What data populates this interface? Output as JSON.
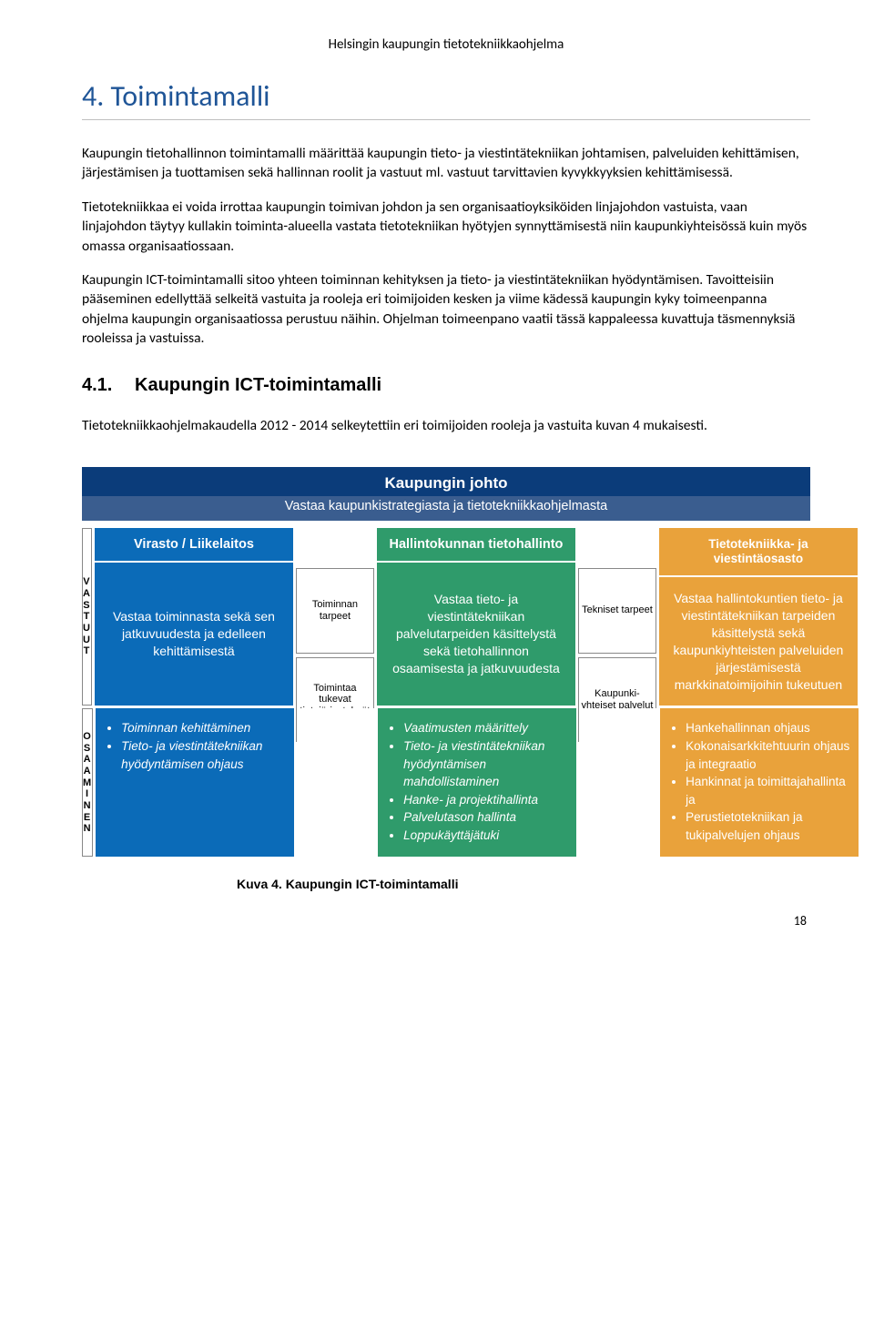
{
  "running_header": "Helsingin kaupungin tietotekniikkaohjelma",
  "heading": "4. Toimintamalli",
  "paragraphs": [
    "Kaupungin tietohallinnon toimintamalli määrittää kaupungin tieto- ja viestintätekniikan johtamisen, palveluiden kehittämisen, järjestämisen ja tuottamisen sekä hallinnan roolit ja vastuut ml. vastuut tarvittavien kyvykkyyksien kehittämisessä.",
    "Tietotekniikkaa ei voida irrottaa kaupungin toimivan johdon ja sen organisaatioyksiköiden linjajohdon vastuista, vaan linjajohdon täytyy kullakin toiminta-alueella vastata tietotekniikan hyötyjen synnyttämisestä niin kaupunkiyhteisössä kuin myös omassa organisaatiossaan.",
    "Kaupungin ICT-toimintamalli sitoo yhteen toiminnan kehityksen ja tieto- ja viestintätekniikan hyödyntämisen. Tavoitteisiin pääseminen edellyttää selkeitä vastuita ja rooleja eri toimijoiden kesken ja viime kädessä kaupungin kyky toimeenpanna ohjelma kaupungin organisaatiossa perustuu näihin. Ohjelman toimeenpano vaatii tässä kappaleessa kuvattuja täsmennyksiä rooleissa ja vastuissa."
  ],
  "subheading_num": "4.1.",
  "subheading_text": "Kaupungin ICT-toimintamalli",
  "sub_intro": "Tietotekniikkaohjelmakaudella 2012 - 2014 selkeytettiin eri toimijoiden rooleja ja vastuita kuvan 4 mukaisesti.",
  "diagram": {
    "top_band_color": "#0b3c7a",
    "top_title": "Kaupungin johto",
    "top_sub_bg": "#3a5d8f",
    "top_sub": "Vastaa kaupunkistrategiasta ja tietotekniikkaohjelmasta",
    "side_label_vastuut": "VASTUUT",
    "side_label_osaaminen": "OSAAMINEN",
    "columns": {
      "blue": {
        "bg": "#0b6bb8",
        "header": "Virasto / Liikelaitos",
        "body": "Vastaa toiminnasta sekä sen jatkuvuudesta ja edelleen kehittämisestä",
        "bullets": [
          "Toiminnan kehittäminen",
          "Tieto- ja viestintätekniikan hyödyntämisen ohjaus"
        ]
      },
      "link1": {
        "boxes": [
          "Toiminnan tarpeet",
          "Toimintaa tukevat tietojärjestelmät"
        ]
      },
      "green": {
        "bg": "#2f9b6b",
        "header": "Hallintokunnan tietohallinto",
        "body": "Vastaa tieto- ja viestintätekniikan palvelutarpeiden käsittelystä sekä tietohallinnon osaamisesta ja jatkuvuudesta",
        "bullets": [
          "Vaatimusten määrittely",
          "Tieto- ja viestintätekniikan hyödyntämisen mahdollistaminen",
          "Hanke- ja projektihallinta",
          "Palvelutason hallinta",
          "Loppukäyttäjätuki"
        ]
      },
      "link2": {
        "boxes": [
          "Tekniset tarpeet",
          "Kaupunki-yhteiset palvelut"
        ]
      },
      "orange": {
        "bg": "#e9a23b",
        "header": "Tietotekniikka- ja viestintäosasto",
        "body": "Vastaa hallintokuntien tieto- ja viestintätekniikan tarpeiden käsittelystä sekä kaupunkiyhteisten palveluiden järjestämisestä markkinatoimijoihin tukeutuen",
        "bullets": [
          "Hankehallinnan ohjaus",
          "Kokonaisarkkitehtuurin ohjaus ja integraatio",
          "Hankinnat ja toimittajahallinta ja",
          "Perustietotekniikan ja tukipalvelujen ohjaus"
        ]
      }
    }
  },
  "caption_label": "Kuva 4.",
  "caption_text": "Kaupungin ICT-toimintamalli",
  "page_number": "18"
}
